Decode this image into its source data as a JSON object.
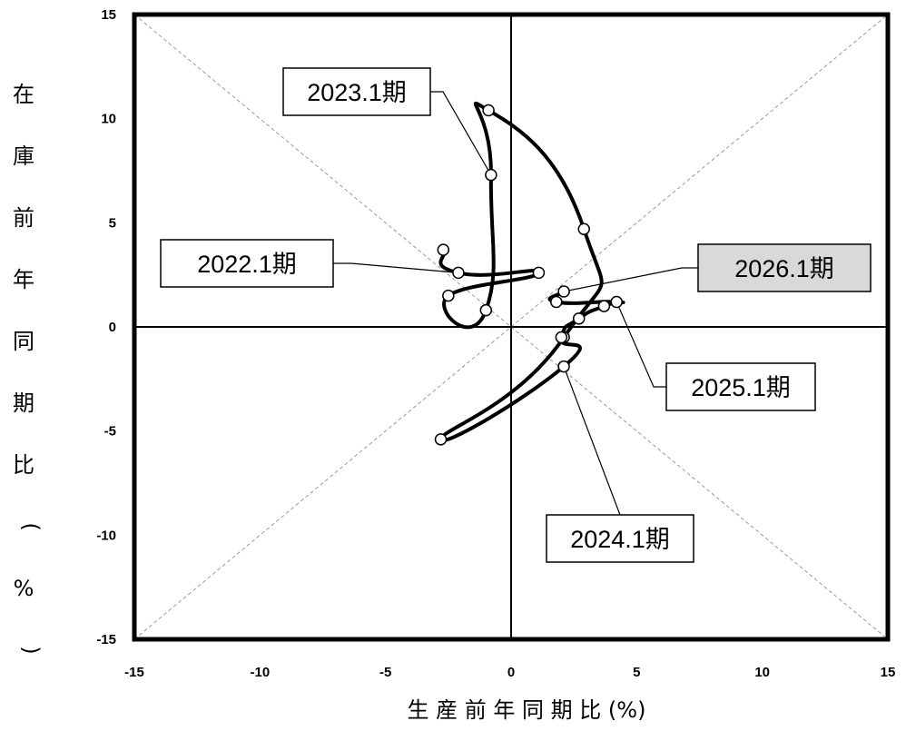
{
  "chart_data": {
    "type": "line",
    "xlabel": "生 産 前 年 同 期 比 (%)",
    "ylabel": "在庫前年同期比(%)",
    "xlim": [
      -15,
      15
    ],
    "ylim": [
      -15,
      15
    ],
    "x_ticks": [
      "-15",
      "-10",
      "-5",
      "0",
      "5",
      "10",
      "15"
    ],
    "y_ticks": [
      "15",
      "10",
      "5",
      "0",
      "-5",
      "-10",
      "-15"
    ],
    "grid": false,
    "diagonal_guides": true,
    "series": [
      {
        "points": [
          {
            "x": -2.7,
            "y": 3.7
          },
          {
            "x": -2.1,
            "y": 2.6
          },
          {
            "x": 1.1,
            "y": 2.6
          },
          {
            "x": -2.5,
            "y": 1.5
          },
          {
            "x": -1.0,
            "y": 0.8
          },
          {
            "x": -0.8,
            "y": 7.3
          },
          {
            "x": -0.9,
            "y": 10.4
          },
          {
            "x": 2.9,
            "y": 4.7
          },
          {
            "x": 2.1,
            "y": -0.5
          },
          {
            "x": -2.8,
            "y": -5.4
          },
          {
            "x": 2.1,
            "y": -1.9
          },
          {
            "x": 2.0,
            "y": -0.5
          },
          {
            "x": 2.7,
            "y": 0.4
          },
          {
            "x": 3.7,
            "y": 1.0
          },
          {
            "x": 4.2,
            "y": 1.2
          },
          {
            "x": 1.8,
            "y": 1.2
          },
          {
            "x": 2.1,
            "y": 1.7
          }
        ]
      }
    ],
    "annotations": [
      {
        "text": "2022.1期",
        "x": -2.1,
        "y": 2.6,
        "highlight": false
      },
      {
        "text": "2023.1期",
        "x": -0.8,
        "y": 7.3,
        "highlight": false
      },
      {
        "text": "2024.1期",
        "x": 2.1,
        "y": -1.9,
        "highlight": false
      },
      {
        "text": "2025.1期",
        "x": 4.2,
        "y": 1.2,
        "highlight": false
      },
      {
        "text": "2026.1期",
        "x": 2.1,
        "y": 1.7,
        "highlight": true
      }
    ]
  },
  "colors": {
    "line": "#000000",
    "diagonal": "#999999",
    "highlight_box": "#d9d9d9",
    "label_box": "#ffffff"
  }
}
